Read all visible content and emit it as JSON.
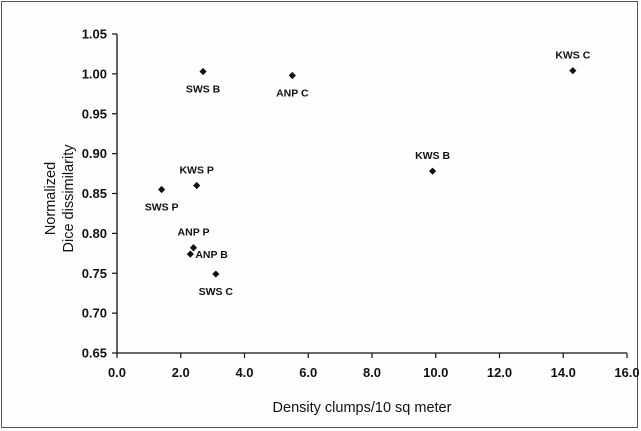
{
  "chart_data": {
    "type": "scatter",
    "xlabel": "Density clumps/10 sq meter",
    "ylabel": [
      "Normalized",
      "Dice dissimilarity"
    ],
    "xlim": [
      0.0,
      16.0
    ],
    "ylim": [
      0.65,
      1.05
    ],
    "x_ticks": [
      "0.0",
      "2.0",
      "4.0",
      "6.0",
      "8.0",
      "10.0",
      "12.0",
      "14.0",
      "16.0"
    ],
    "y_ticks": [
      "0.65",
      "0.70",
      "0.75",
      "0.80",
      "0.85",
      "0.90",
      "0.95",
      "1.00",
      "1.05"
    ],
    "grid": false,
    "marker": "diamond",
    "marker_color": "#111111",
    "points": [
      {
        "label": "SWS B",
        "x": 2.7,
        "y": 1.003,
        "label_pos": "below"
      },
      {
        "label": "ANP C",
        "x": 5.5,
        "y": 0.998,
        "label_pos": "below"
      },
      {
        "label": "KWS C",
        "x": 14.3,
        "y": 1.004,
        "label_pos": "above"
      },
      {
        "label": "KWS B",
        "x": 9.9,
        "y": 0.878,
        "label_pos": "above"
      },
      {
        "label": "KWS P",
        "x": 2.5,
        "y": 0.86,
        "label_pos": "above"
      },
      {
        "label": "SWS P",
        "x": 1.4,
        "y": 0.855,
        "label_pos": "below"
      },
      {
        "label": "ANP P",
        "x": 2.4,
        "y": 0.782,
        "label_pos": "above"
      },
      {
        "label": "ANP B",
        "x": 2.3,
        "y": 0.774,
        "label_pos": "right"
      },
      {
        "label": "SWS C",
        "x": 3.1,
        "y": 0.749,
        "label_pos": "below"
      }
    ]
  }
}
